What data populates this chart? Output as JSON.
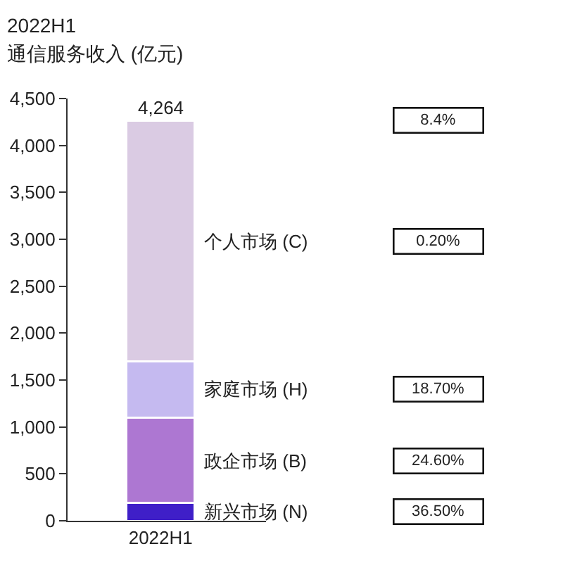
{
  "chart_data": {
    "type": "bar",
    "title": "2022H1",
    "subtitle": "通信服务收入 (亿元)",
    "categories": [
      "2022H1"
    ],
    "stacked": true,
    "series": [
      {
        "name": "新兴市场 (N)",
        "color": "#3f1fc8",
        "values": [
          190
        ]
      },
      {
        "name": "政企市场 (B)",
        "color": "#ad77d2",
        "values": [
          910
        ]
      },
      {
        "name": "家庭市场 (H)",
        "color": "#c5baf0",
        "values": [
          600
        ]
      },
      {
        "name": "个人市场 (C)",
        "color": "#dacbe3",
        "values": [
          2564
        ]
      }
    ],
    "totals": [
      "4,264"
    ],
    "annotations": [
      "8.4%",
      "0.20%",
      "18.70%",
      "24.60%",
      "36.50%"
    ],
    "ylim": [
      0,
      4500
    ],
    "yticks": [
      0,
      {
        "value": 500,
        "label": "500"
      },
      {
        "value": 1000,
        "label": "1,000"
      },
      {
        "value": 1500,
        "label": "1,500"
      },
      {
        "value": 2000,
        "label": "2,000"
      },
      {
        "value": 2500,
        "label": "2,500"
      },
      {
        "value": 3000,
        "label": "3,000"
      },
      {
        "value": 3500,
        "label": "3,500"
      },
      {
        "value": 4000,
        "label": "4,000"
      },
      {
        "value": 4500,
        "label": "4,500"
      }
    ],
    "legend": false
  }
}
